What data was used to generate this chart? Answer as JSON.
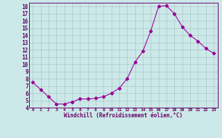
{
  "x": [
    0,
    1,
    2,
    3,
    4,
    5,
    6,
    7,
    8,
    9,
    10,
    11,
    12,
    13,
    14,
    15,
    16,
    17,
    18,
    19,
    20,
    21,
    22,
    23
  ],
  "y": [
    7.5,
    6.5,
    5.5,
    4.5,
    4.5,
    4.8,
    5.2,
    5.2,
    5.3,
    5.5,
    6.0,
    6.7,
    8.0,
    10.3,
    11.8,
    14.6,
    18.0,
    18.1,
    17.0,
    15.2,
    14.0,
    13.2,
    12.2,
    11.5
  ],
  "line_color": "#990099",
  "marker": "D",
  "marker_size": 2.2,
  "bg_color": "#cce8e8",
  "grid_color": "#aac8c8",
  "xlabel": "Windchill (Refroidissement éolien,°C)",
  "xlabel_color": "#660066",
  "tick_color": "#660066",
  "ylim": [
    4,
    18.5
  ],
  "xlim": [
    -0.5,
    23.5
  ],
  "yticks": [
    4,
    5,
    6,
    7,
    8,
    9,
    10,
    11,
    12,
    13,
    14,
    15,
    16,
    17,
    18
  ],
  "xtick_labels": [
    "0",
    "1",
    "2",
    "3",
    "4",
    "5",
    "6",
    "7",
    "8",
    "9",
    "10",
    "11",
    "12",
    "13",
    "14",
    "15",
    "16",
    "17",
    "18",
    "19",
    "20",
    "21",
    "22",
    "23"
  ],
  "xticks": [
    0,
    1,
    2,
    3,
    4,
    5,
    6,
    7,
    8,
    9,
    10,
    11,
    12,
    13,
    14,
    15,
    16,
    17,
    18,
    19,
    20,
    21,
    22,
    23
  ]
}
